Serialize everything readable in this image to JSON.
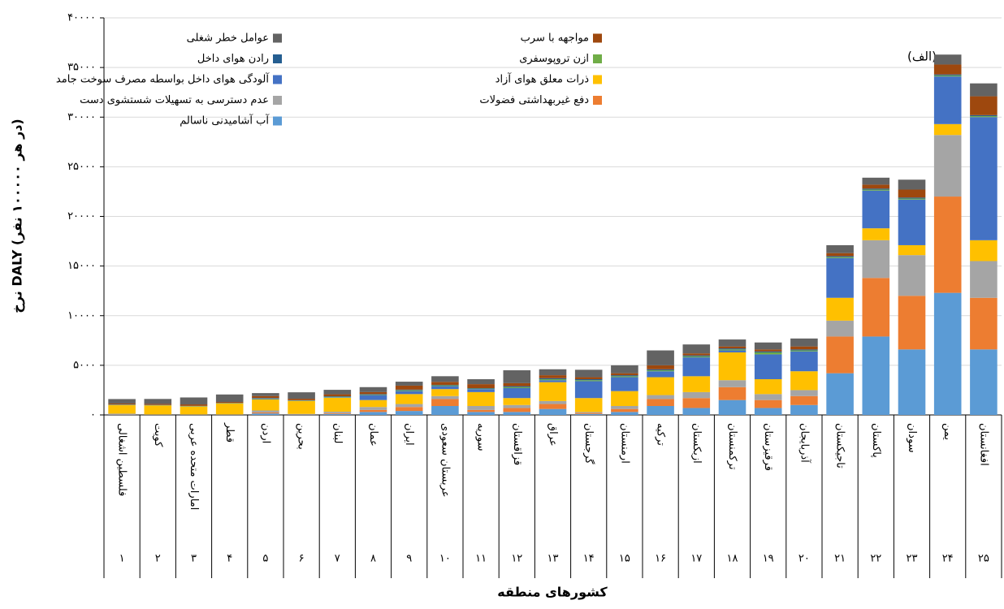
{
  "chart_data": {
    "type": "stacked_bar",
    "annotation": "(الف)",
    "y_label": "نرخ DALY (در هر ۱۰۰۰۰۰ نفر)",
    "x_label": "کشورهای منطقه",
    "categories": [
      "فلسطین اشغالی",
      "کویت",
      "امارات متحده عربی",
      "قطر",
      "اردن",
      "بحرین",
      "لبنان",
      "عمان",
      "ایران",
      "عربستان سعودی",
      "سوریه",
      "قزاقستان",
      "عراق",
      "گرجستان",
      "ارمنستان",
      "ترکیه",
      "ازبکستان",
      "ترکمنستان",
      "قرقیزستان",
      "آذربایجان",
      "تاجیکستان",
      "پاکستان",
      "سودان",
      "یمن",
      "افغانستان"
    ],
    "category_numbers": [
      "۱",
      "۲",
      "۳",
      "۴",
      "۵",
      "۶",
      "۷",
      "۸",
      "۹",
      "۱۰",
      "۱۱",
      "۱۲",
      "۱۳",
      "۱۴",
      "۱۵",
      "۱۶",
      "۱۷",
      "۱۸",
      "۱۹",
      "۲۰",
      "۲۱",
      "۲۲",
      "۲۳",
      "۲۴",
      "۲۵"
    ],
    "ylim": [
      0,
      40000
    ],
    "yticks": [
      {
        "value": 0,
        "label": "۰"
      },
      {
        "value": 5000,
        "label": "۵۰۰۰"
      },
      {
        "value": 10000,
        "label": "۱۰۰۰۰"
      },
      {
        "value": 15000,
        "label": "۱۵۰۰۰"
      },
      {
        "value": 20000,
        "label": "۲۰۰۰۰"
      },
      {
        "value": 25000,
        "label": "۲۵۰۰۰"
      },
      {
        "value": 30000,
        "label": "۳۰۰۰۰"
      },
      {
        "value": 35000,
        "label": "۳۵۰۰۰"
      },
      {
        "value": 40000,
        "label": "۴۰۰۰۰"
      }
    ],
    "grid": true,
    "series": [
      {
        "name": "آب آشامیدنی ناسالم",
        "color": "#5b9bd5",
        "values": [
          50,
          20,
          20,
          20,
          150,
          30,
          100,
          300,
          400,
          900,
          300,
          300,
          600,
          100,
          300,
          900,
          700,
          1500,
          700,
          1000,
          4200,
          7900,
          6600,
          12300,
          6600
        ]
      },
      {
        "name": "دفع غیربهداشتی فضولات",
        "color": "#ed7d31",
        "values": [
          30,
          10,
          10,
          10,
          100,
          20,
          80,
          200,
          400,
          700,
          200,
          400,
          500,
          100,
          300,
          700,
          1000,
          1300,
          800,
          900,
          3700,
          5900,
          5400,
          9700,
          5200
        ]
      },
      {
        "name": "عدم دسترسی به تسهیلات شستشوی دست",
        "color": "#a5a5a5",
        "values": [
          50,
          20,
          20,
          20,
          200,
          50,
          150,
          300,
          300,
          300,
          400,
          300,
          300,
          100,
          300,
          400,
          600,
          700,
          600,
          600,
          1600,
          3800,
          4100,
          6200,
          3700
        ]
      },
      {
        "name": "ذرات معلق هوای آزاد",
        "color": "#ffc000",
        "values": [
          850,
          900,
          800,
          1100,
          1100,
          1300,
          1400,
          700,
          1000,
          700,
          1400,
          700,
          1900,
          1400,
          1500,
          1800,
          1600,
          2800,
          1500,
          1900,
          2300,
          1200,
          1000,
          1100,
          2100
        ]
      },
      {
        "name": "آلودگی هوای داخل بواسطه مصرف سوخت جامد",
        "color": "#4472c4",
        "values": [
          20,
          10,
          10,
          10,
          50,
          20,
          50,
          500,
          300,
          300,
          300,
          1000,
          200,
          1700,
          1400,
          600,
          1900,
          200,
          2500,
          2000,
          4000,
          3800,
          4600,
          4800,
          12400
        ]
      },
      {
        "name": "ازن تروپوسفری",
        "color": "#70ad47",
        "values": [
          30,
          30,
          30,
          30,
          50,
          40,
          50,
          50,
          80,
          80,
          50,
          100,
          100,
          100,
          100,
          100,
          100,
          100,
          200,
          100,
          100,
          100,
          100,
          100,
          100
        ]
      },
      {
        "name": "رادن هوای داخل",
        "color": "#255e91",
        "values": [
          20,
          20,
          20,
          20,
          50,
          20,
          50,
          50,
          70,
          50,
          50,
          100,
          100,
          100,
          100,
          100,
          100,
          100,
          100,
          100,
          100,
          100,
          100,
          100,
          100
        ]
      },
      {
        "name": "مواجهه با سرب",
        "color": "#9e480e",
        "values": [
          100,
          100,
          150,
          100,
          200,
          150,
          200,
          200,
          400,
          300,
          400,
          300,
          300,
          200,
          200,
          400,
          200,
          200,
          200,
          300,
          300,
          400,
          800,
          1000,
          1900
        ]
      },
      {
        "name": "عوامل خطر شغلی",
        "color": "#636363",
        "values": [
          450,
          500,
          700,
          750,
          300,
          650,
          450,
          500,
          400,
          570,
          500,
          1300,
          600,
          750,
          800,
          1500,
          900,
          700,
          700,
          800,
          800,
          700,
          1000,
          1000,
          1300
        ]
      }
    ]
  }
}
